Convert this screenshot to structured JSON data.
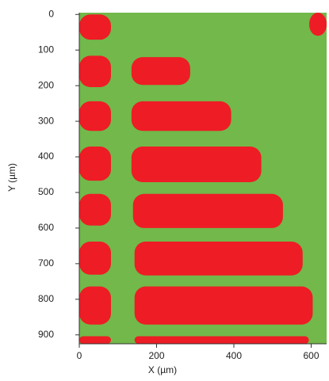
{
  "chart_data": {
    "type": "region-map",
    "xlabel": "X (µm)",
    "ylabel": "Y (µm)",
    "xlim": [
      0,
      640
    ],
    "ylim": [
      -5,
      925
    ],
    "xticks": [
      0,
      200,
      400,
      600
    ],
    "yticks": [
      0,
      100,
      200,
      300,
      400,
      500,
      600,
      700,
      800,
      900
    ],
    "background_color": "#72b84a",
    "region_color": "#ee1c25",
    "regions": [
      {
        "x": [
          0,
          82
        ],
        "y": [
          0,
          71
        ]
      },
      {
        "x": [
          0,
          82
        ],
        "y": [
          116,
          204
        ]
      },
      {
        "x": [
          0,
          82
        ],
        "y": [
          244,
          327
        ]
      },
      {
        "x": [
          0,
          82
        ],
        "y": [
          371,
          467
        ]
      },
      {
        "x": [
          0,
          82
        ],
        "y": [
          504,
          593
        ]
      },
      {
        "x": [
          0,
          82
        ],
        "y": [
          638,
          731
        ]
      },
      {
        "x": [
          0,
          82
        ],
        "y": [
          764,
          871
        ]
      },
      {
        "x": [
          0,
          82
        ],
        "y": [
          904,
          925
        ]
      },
      {
        "x": [
          135,
          287
        ],
        "y": [
          120,
          198
        ]
      },
      {
        "x": [
          135,
          393
        ],
        "y": [
          244,
          327
        ]
      },
      {
        "x": [
          135,
          471
        ],
        "y": [
          371,
          471
        ]
      },
      {
        "x": [
          139,
          527
        ],
        "y": [
          504,
          600
        ]
      },
      {
        "x": [
          143,
          578
        ],
        "y": [
          638,
          733
        ]
      },
      {
        "x": [
          143,
          604
        ],
        "y": [
          764,
          871
        ]
      },
      {
        "x": [
          143,
          594
        ],
        "y": [
          904,
          925
        ]
      },
      {
        "x": [
          595,
          640
        ],
        "y": [
          -5,
          60
        ]
      }
    ]
  }
}
